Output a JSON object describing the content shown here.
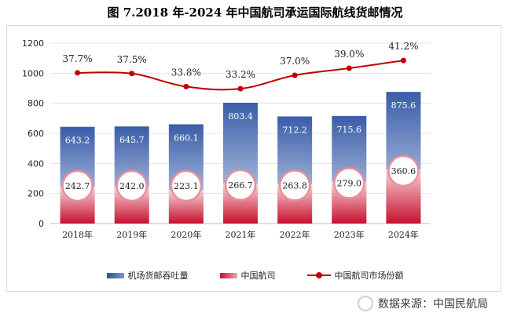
{
  "title": "图 7.2018 年-2024 年中国航司承运国际航线货邮情况",
  "source_text": "数据来源：中国民航局",
  "watermark_logo": "xueqiu-logo",
  "chart_data": {
    "type": "bar",
    "categories": [
      "2018年",
      "2019年",
      "2020年",
      "2021年",
      "2022年",
      "2023年",
      "2024年"
    ],
    "series": [
      {
        "name": "机场货邮吞吐量",
        "type": "bar",
        "values": [
          643.2,
          645.7,
          660.1,
          803.4,
          712.2,
          715.6,
          875.6
        ],
        "labels": [
          "643.2",
          "645.7",
          "660.1",
          "803.4",
          "712.2",
          "715.6",
          "875.6"
        ],
        "color_top": "#3a5da8",
        "color_bottom": "#c9d4ee"
      },
      {
        "name": "中国航司",
        "type": "bar",
        "values": [
          242.7,
          242.0,
          223.1,
          266.7,
          263.8,
          279.0,
          360.6
        ],
        "labels": [
          "242.7",
          "242.0",
          "223.1",
          "266.7",
          "263.8",
          "279.0",
          "360.6"
        ],
        "color_top": "#f6c3c9",
        "color_bottom": "#c8102e"
      },
      {
        "name": "中国航司市场份额",
        "type": "line",
        "values": [
          37.7,
          37.5,
          33.8,
          33.2,
          37.0,
          39.0,
          41.2
        ],
        "labels": [
          "37.7%",
          "37.5%",
          "33.8%",
          "33.2%",
          "37.0%",
          "39.0%",
          "41.2%"
        ],
        "color": "#c00000"
      }
    ],
    "ylim": [
      0,
      1200
    ],
    "yticks": [
      "0",
      "200",
      "400",
      "600",
      "800",
      "1000",
      "1200"
    ],
    "grid": true,
    "legend": "bottom"
  }
}
